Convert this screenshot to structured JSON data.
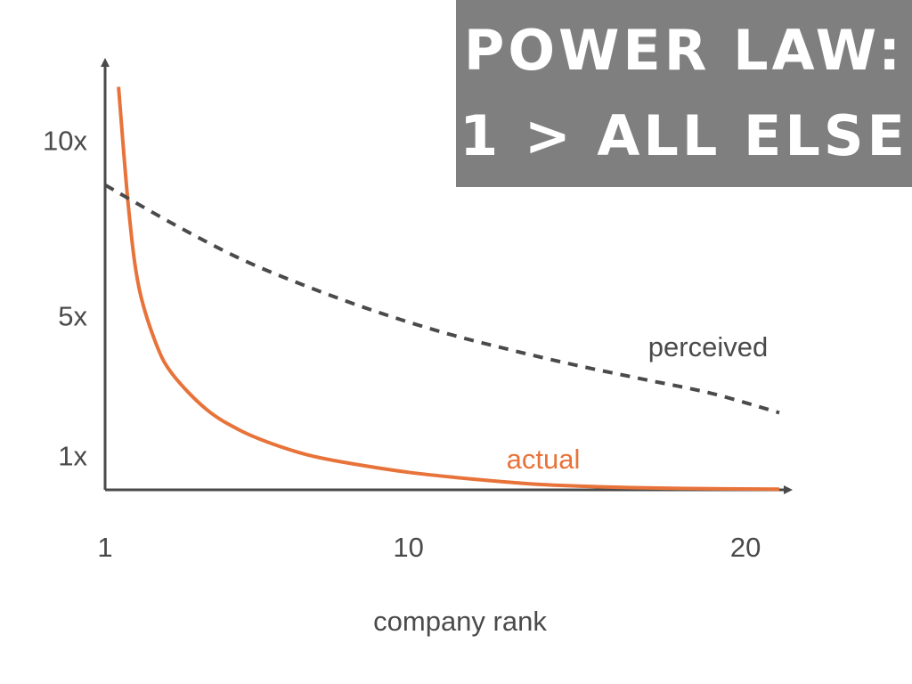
{
  "title": {
    "line1": "POWER LAW:",
    "line2": "1 > ALL ELSE",
    "background": "#7f7f7f",
    "color": "#ffffff"
  },
  "chart_data": {
    "type": "line",
    "xlabel": "company rank",
    "ylabel": "",
    "xlim": [
      1,
      21
    ],
    "ylim": [
      0,
      12.2
    ],
    "x_ticks": [
      {
        "value": 1,
        "label": "1"
      },
      {
        "value": 10,
        "label": "10"
      },
      {
        "value": 20,
        "label": "20"
      }
    ],
    "y_ticks": [
      {
        "value": 1,
        "label": "1x"
      },
      {
        "value": 5,
        "label": "5x"
      },
      {
        "value": 10,
        "label": "10x"
      }
    ],
    "grid": false,
    "series": [
      {
        "name": "actual",
        "color": "#e8733a",
        "style": "solid",
        "x": [
          1.4,
          1.7,
          2,
          2.5,
          3,
          4,
          5,
          6,
          7,
          8,
          10,
          12,
          14,
          16,
          18,
          21
        ],
        "values": [
          11.5,
          8.0,
          5.8,
          4.2,
          3.3,
          2.3,
          1.7,
          1.3,
          1.0,
          0.8,
          0.5,
          0.3,
          0.15,
          0.08,
          0.04,
          0.02
        ]
      },
      {
        "name": "perceived",
        "color": "#4a4a4a",
        "style": "dashed",
        "x": [
          1,
          3,
          5,
          7,
          9,
          11,
          13,
          15,
          17,
          19,
          21
        ],
        "values": [
          8.7,
          7.6,
          6.6,
          5.8,
          5.1,
          4.5,
          4.0,
          3.55,
          3.15,
          2.75,
          2.2
        ]
      }
    ]
  }
}
